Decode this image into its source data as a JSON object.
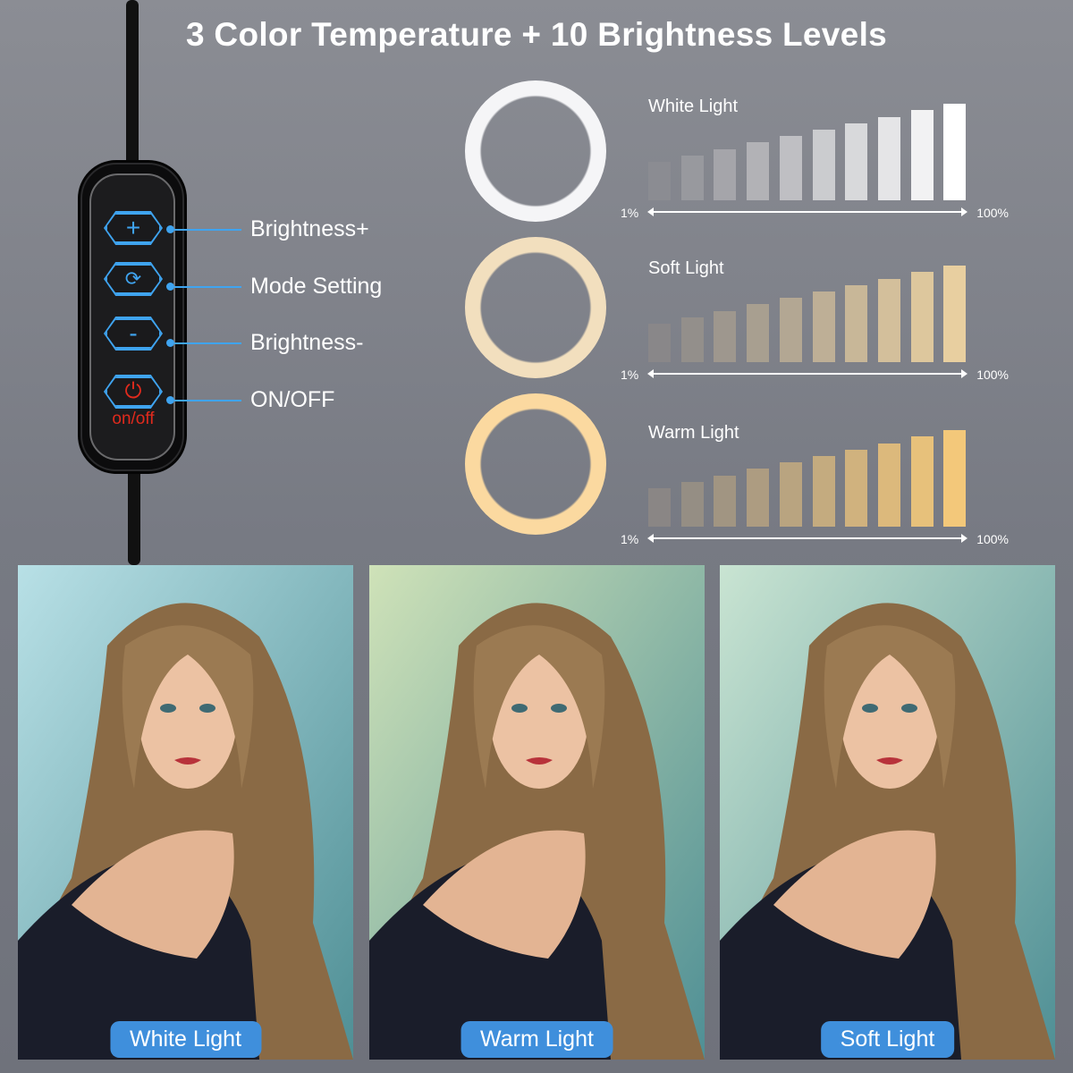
{
  "title": "3 Color Temperature + 10 Brightness Levels",
  "remote": {
    "power_label": "on/off",
    "callouts": [
      "Brightness+",
      "Mode Setting",
      "Brightness-",
      "ON/OFF"
    ],
    "accent_color": "#3fa4f0",
    "power_color": "#e02a1d"
  },
  "modes": [
    {
      "name": "White Light",
      "levels": 10,
      "min": "1%",
      "max": "100%",
      "ring_color": "#f5f5f7",
      "full_color": "#ffffff"
    },
    {
      "name": "Soft Light",
      "levels": 10,
      "min": "1%",
      "max": "100%",
      "ring_color": "#f2dfbe",
      "full_color": "#e8cfa0"
    },
    {
      "name": "Warm Light",
      "levels": 10,
      "min": "1%",
      "max": "100%",
      "ring_color": "#fbd9a0",
      "full_color": "#f3c87a"
    }
  ],
  "photos": [
    {
      "label": "White Light",
      "tint": "#b8e0e6"
    },
    {
      "label": "Warm Light",
      "tint": "#cfe2b8"
    },
    {
      "label": "Soft Light",
      "tint": "#c9e4d2"
    }
  ]
}
